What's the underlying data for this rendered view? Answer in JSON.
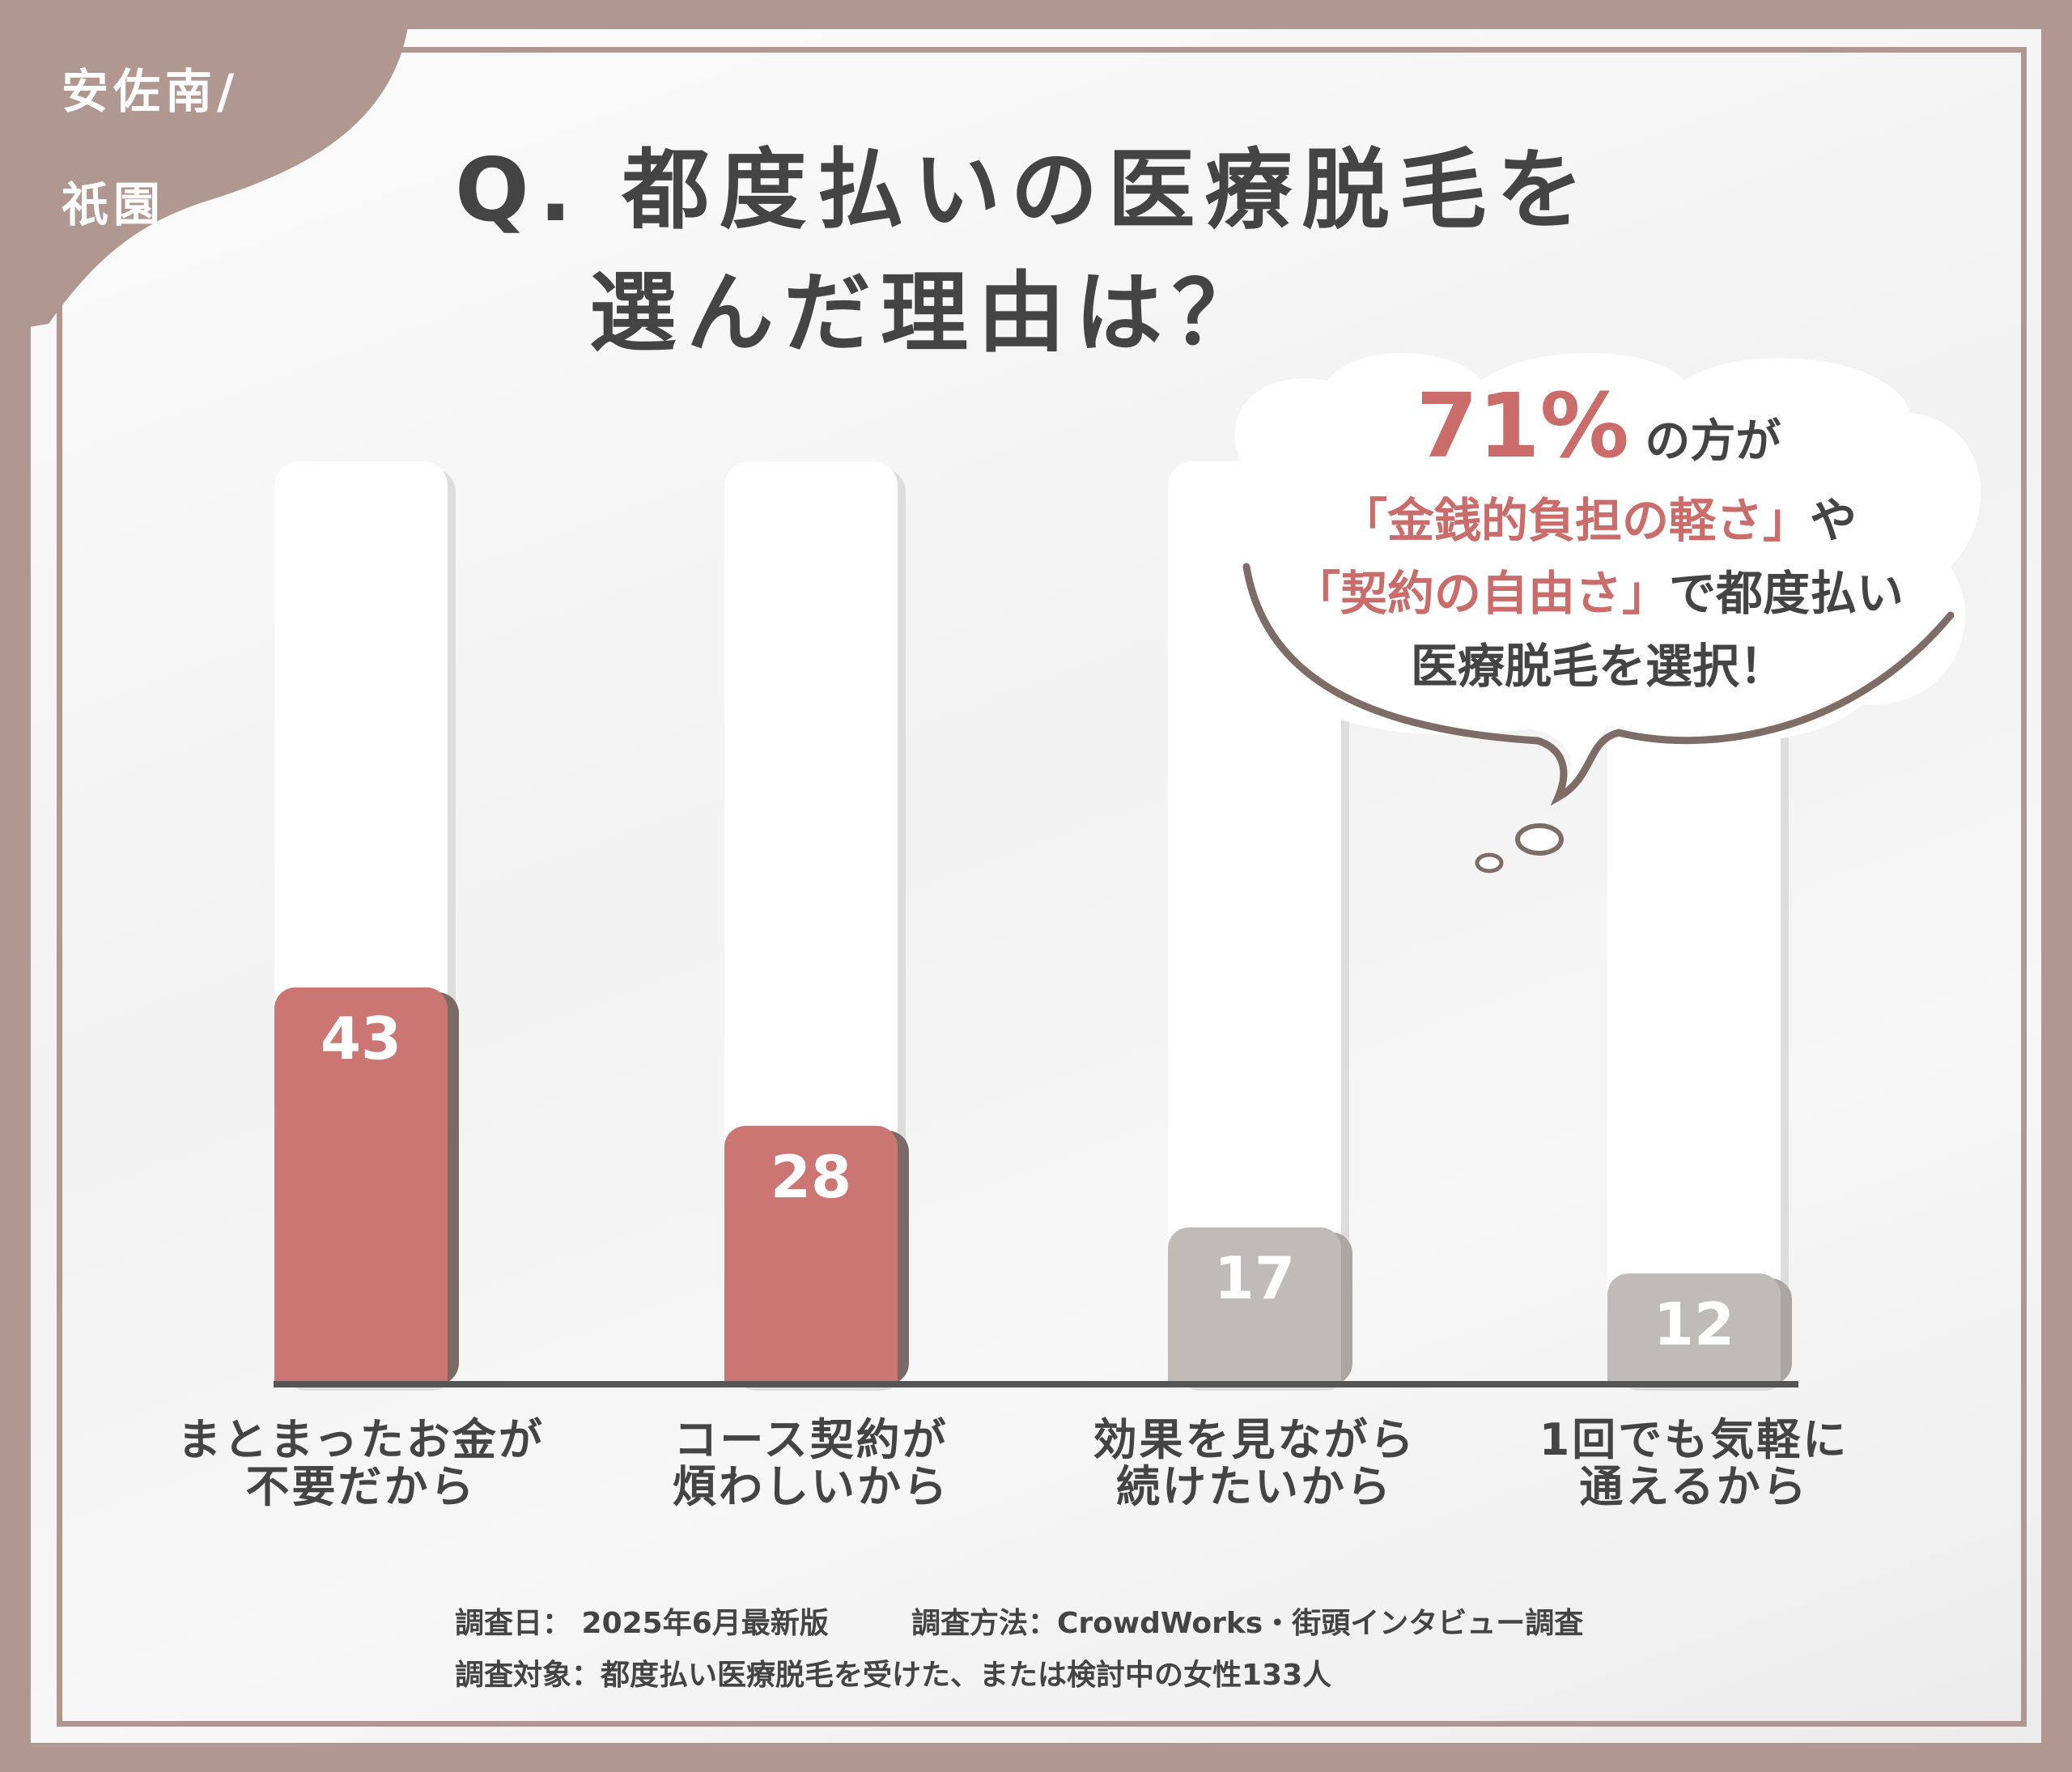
{
  "area": {
    "line1": "安佐南/",
    "line2": "祇園"
  },
  "question": {
    "line1": "Q. 都度払いの医療脱毛を",
    "line2": "選んだ理由は？"
  },
  "callout": {
    "percent": "71%",
    "suffix1": "の方が",
    "highlight1": "「金銭的負担の軽さ」",
    "joiner": "や",
    "highlight2": "「契約の自由さ」",
    "suffix2": "で都度払い",
    "line4": "医療脱毛を選択！"
  },
  "colors": {
    "frame": "#b09890",
    "accent_bar": "#cc7673",
    "muted_bar": "#bebbb8",
    "text": "#444444",
    "highlight_text": "#c96c6a"
  },
  "chart_data": {
    "type": "bar",
    "categories": [
      "まとまったお金が\n不要だから",
      "コース契約が\n煩わしいから",
      "効果を見ながら\n続けたいから",
      "1回でも気軽に\n通えるから"
    ],
    "values": [
      43,
      28,
      17,
      12
    ],
    "value_labels": [
      "43",
      "28",
      "17",
      "12"
    ],
    "highlighted": [
      true,
      true,
      false,
      false
    ],
    "ylim": [
      0,
      100
    ],
    "title": "",
    "xlabel": "",
    "ylabel": "",
    "grid": false,
    "legend": "none"
  },
  "footer": {
    "line1_date": "調査日： 2025年6月最新版",
    "line1_method": "調査方法：CrowdWorks・街頭インタビュー調査",
    "line2": "調査対象：都度払い医療脱毛を受けた、または検討中の女性133人"
  }
}
